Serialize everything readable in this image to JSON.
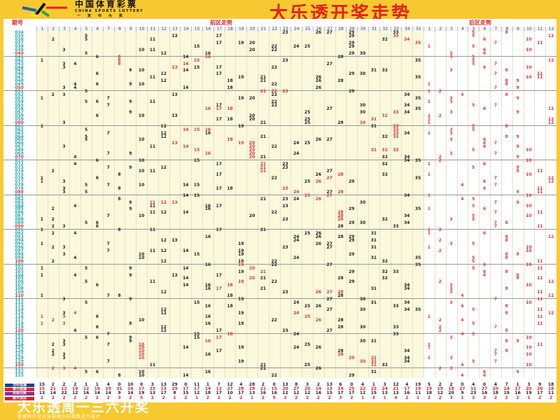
{
  "header": {
    "brand": "中国体育彩票",
    "brand_en": "CHINA SPORTS LOTTERY",
    "brand_sub": "一定中大奖",
    "title": "大乐透开奖走势"
  },
  "table": {
    "period_header": "期号",
    "front_header": "前区走势",
    "back_header": "后区走势",
    "front_count": 35,
    "back_count": 12
  },
  "colors": {
    "background": "#f8c930",
    "title": "#e2231a",
    "hit": "#222222",
    "streak": "#e0343a",
    "period": "#2aa6a6",
    "period_decade": "#e0343a",
    "back_hit": "#e0343a"
  },
  "rows": [
    "034|23 26 27 29 33|5 8",
    "035|5 13 17 29 *33|5 12",
    "036|2 5 11 32 *34|6 10",
    "037|17 19 20 29 *35|7 11",
    "038|15 22 24 25 29|1 5",
    "039|3 10 11 20 22|6 10",
    "040|5 12 16 29 30|3 6",
    "041|6 *8 14 *16 28|3 5",
    "042|1 *8 *15 23 35|5 12",
    "043|3 4 *8 *14 27|5 7",
    "044|3 *13 15 17 22|6 10",
    "045|9 10 14 31 32|3 8",
    "046|6 12 17 29 30|7 11",
    "047|11 19 21 26 35|10 11",
    "048|12 18 21 26 28|8 9",
    "049|4 6 9 10 22|1 8",
    "050|3 4 14 18 26|7 9",
    "051|5 *21 *22 *23 29|1 2",
    "052|2 3 13 22 34|4 8",
    "053|1 7 19 20 35|3 9",
    "054|5 6 9 11 22|1 3",
    "055|7 17 22 30 34|5 7",
    "056|*16 *17 *18 27 35|6 12",
    "057|9 25 30 *33 34|3 9",
    "058|6 10 13 20 *32|1 2",
    "059|17 18 20 25 *31|1 12",
    "060|3 21 25 28 *30|1 12",
    "061|1 12 19 31 *33|5 8",
    "062|5 *14 *15 *16 *33|3 5",
    "063|7 12 16 *33 34|1 3",
    "064|5 12 21 32 *33|8 9",
    "065|5 10 *18 26 27|3 6",
    "066|*13 *19 *20 24 25|6 7",
    "067|3 11 *14 *20 22|6 9",
    "068|*15 *20 *31 *32 *33|5 10",
    "069|7 9 *16 *20 24|3 7",
    "070|4 *20 21 32 34|2 9",
    "071|6 10 15 34 35|2 10",
    "072|4 17 *21 23 32|1 6",
    "073|7 9 12 *21 23|5 9",
    "074|2 10 11 *21 27|9 11",
    "075|8 17 26 *28 32|1 10",
    "076|1 6 22 *27 35|7 12",
    "077|1 3 25 *26 29|6 12",
    "078|5 7 10 14 15|4 7",
    "079|3 8 17 18 *23|6 11",
    "080|3 5 *24 27 *28|9 11",
    "081|14 15 *25 *27 34|1 10",
    "082|8 21 23 24 *26|4 5",
    "083|9 *11 *12 *13 30|7 9",
    "084|4 11 16 17 23|5 10",
    "085|2 9 16 29 35|1 6",
    "086|11 12 14 22 *28|7 11",
    "087|7 10 20 *28 34|5 10",
    "088|1 2 23 *28 32|3 5",
    "089|5 6 29 30 34|7 8",
    "090|2 3 6 28 33|7 11",
    "091|1 8 11 17 21|1 2",
    "092|2 4 25 26 31|1 6",
    "093|16 24 26 28 29|8 12",
    "094|12 13 24 29 31|2 8",
    "095|1 7 19 26 27|3 5",
    "096|2 3 23 27 31|1 10",
    "097|7 11 12 14 19|2 10",
    "098|3 10 15 19 29|8 9",
    "099|4 10 24 31 35|5 8",
    "100|2 12 19 22 32|5 11",
    "101|16 *19 22 27 35|6 10",
    "102|1 5 9 14 *20|5 11",
    "103|19 *21 29 32 33|6 8",
    "104|1 4 9 13 17|6 9",
    "105|14 *20 21 28 32|9 11",
    "106|5 11 *19 22 29|2 12",
    "107|6 14 16 *18 34|3 10",
    "108|16 *17 21 31 34|3 8",
    "109|12 23 *26 *27 *28|3 11",
    "110|1 7 8 18 28|4 12",
    "111|3 9 19 27 30|7 11",
    "112|5 15 24 31 34|3 10",
    "113|16 18 25 26 33|4 8",
    "114|12 27 30 34 35|5 11",
    "115|3 *4 12 19 *24|8 12",
    "116|*1 *3 6 16 *25|1 11",
    "117|*2 10 22 *26 28|2 4",
    "118|*1 *3 9 16 19|5 11",
    "119|6 12 28 30 33|2 7",
    "120|4 12 17 23 27|2 8",
    "121|7 15 *18 24 33|4 5",
    "122|5 6 9 15 *17|3 10",
    "123|3 9 *16 30 31|8 9",
    "124|2 3 7 *10 25|1 11",
    "125|*10 14 19 24 26|1 10",
    "126|2 *10 17 28 34|7 8",
    "127|2 3 *10 16 *28|7 10",
    "128|3 *10 *29 *31 34|1 3",
    "129|7 19 *30 *31 34|5 7",
    "130|11 21 25 *31 32|4 10",
    "131|*2 *3 *4 21 26|2 3",
    "132|5 6 10 16 31|6 9",
    "133|8 10 14 22 29|4 6"
  ],
  "stats": [
    {
      "label": "当前遗漏",
      "color": "#1f3f8f",
      "front": [
        15,
        2,
        2,
        2,
        1,
        1,
        4,
        0,
        10,
        0,
        3,
        13,
        29,
        0,
        11,
        1,
        7,
        12,
        4,
        28,
        2,
        0,
        13,
        8,
        3,
        2,
        13,
        6,
        0,
        4,
        1,
        3,
        12,
        4,
        19
      ],
      "back": [
        5,
        2,
        2,
        0,
        4,
        0,
        4,
        7,
        1,
        3,
        9,
        18
      ]
    },
    {
      "label": "最大遗漏",
      "color": "#d6262c",
      "front": [
        15,
        21,
        12,
        19,
        12,
        16,
        19,
        31,
        16,
        17,
        23,
        13,
        29,
        17,
        17,
        14,
        12,
        27,
        28,
        28,
        21,
        15,
        20,
        27,
        20,
        14,
        13,
        14,
        25,
        22,
        23,
        24,
        21,
        17,
        19
      ],
      "back": [
        19,
        19,
        18,
        27,
        11,
        27,
        20,
        24,
        17,
        20,
        26,
        18
      ]
    },
    {
      "label": "出现次数",
      "color": "#8e2a8e",
      "front": [
        13,
        14,
        22,
        12,
        16,
        14,
        14,
        9,
        14,
        19,
        13,
        17,
        8,
        15,
        12,
        18,
        17,
        10,
        17,
        13,
        16,
        16,
        12,
        12,
        12,
        16,
        15,
        17,
        17,
        12,
        15,
        13,
        13,
        16,
        11
      ],
      "back": [
        18,
        12,
        20,
        9,
        23,
        16,
        18,
        19,
        16,
        19,
        17,
        11
      ]
    },
    {
      "label": "最大连出",
      "color": "#d6262c",
      "front": [
        2,
        2,
        2,
        2,
        2,
        2,
        2,
        3,
        2,
        5,
        2,
        2,
        1,
        2,
        1,
        2,
        2,
        2,
        2,
        1,
        2,
        5,
        3,
        2,
        2,
        2,
        2,
        3,
        2,
        1,
        3,
        1,
        4,
        2,
        1
      ],
      "back": [
        2,
        2,
        3,
        1,
        3,
        3,
        2,
        2,
        2,
        1,
        2,
        2
      ]
    }
  ],
  "banner": {
    "title": "大乐透周一三六开奖",
    "subtitle": "数据统计仅对当前展示的期数进行统计"
  }
}
